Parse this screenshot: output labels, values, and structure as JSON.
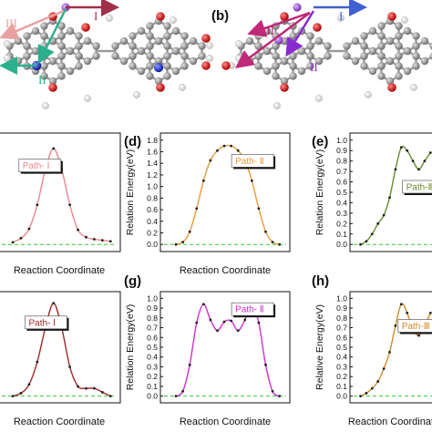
{
  "colors": {
    "carbon": "#8a8a8a",
    "oxygen": "#d01818",
    "nitrogen": "#1a2bd0",
    "hydrogen": "#f2f2f2",
    "atom_purple": "#9b59d0",
    "arrow_I": "#a0304a",
    "arrow_II_a": "#2ab08c",
    "arrow_III_a": "#e8a0a0",
    "arrow_I_b": "#4060d0",
    "arrow_II_b": "#8a2bd0",
    "arrow_III_b": "#c02878",
    "baseline": "#33cc33"
  },
  "panel_labels": {
    "b": "(b)",
    "d": "(d)",
    "e": "(e)",
    "g": "(g)",
    "h": "(h)"
  },
  "molecule_a": {
    "label_I": "I",
    "label_II": "II",
    "label_III": "III"
  },
  "molecule_b": {
    "label_I": "I",
    "label_II": "II",
    "label_III": "III"
  },
  "chart_data": [
    {
      "id": "c",
      "type": "line",
      "xlabel": "Reaction Coordinate",
      "ylabel": "",
      "ylim": [
        0,
        1.0
      ],
      "annotation": "Path- Ⅰ",
      "series": [
        {
          "color": "#e8888c",
          "values": [
            0.02,
            0.06,
            0.15,
            0.38,
            0.72,
            0.92,
            0.72,
            0.38,
            0.14,
            0.07,
            0.05,
            0.04,
            0.03
          ]
        }
      ]
    },
    {
      "id": "d",
      "type": "line",
      "xlabel": "Reaction Coordinate",
      "ylabel": "Relation Energy(eV)",
      "ylim": [
        0,
        1.8
      ],
      "yticks": [
        "0.0",
        "0.2",
        "0.4",
        "0.6",
        "0.8",
        "1.0",
        "1.2",
        "1.4",
        "1.6",
        "1.8"
      ],
      "annotation": "Path- Ⅱ",
      "series": [
        {
          "color": "#e89a3c",
          "values": [
            0.0,
            0.04,
            0.22,
            0.62,
            1.1,
            1.45,
            1.62,
            1.7,
            1.7,
            1.62,
            1.45,
            1.1,
            0.62,
            0.22,
            0.04,
            0.0
          ]
        }
      ]
    },
    {
      "id": "e",
      "type": "line",
      "xlabel": "",
      "ylabel": "Relation Energy(eV)",
      "ylim": [
        0,
        1.0
      ],
      "yticks": [
        "0.0",
        "0.1",
        "0.2",
        "0.3",
        "0.4",
        "0.5",
        "0.6",
        "0.7",
        "0.8",
        "0.9",
        "1.0"
      ],
      "annotation": "Path-Ⅲ",
      "series": [
        {
          "color": "#6a8a2a",
          "values": [
            0.0,
            0.03,
            0.1,
            0.2,
            0.28,
            0.45,
            0.72,
            0.93,
            0.9,
            0.8,
            0.72,
            0.8,
            0.88
          ]
        }
      ]
    },
    {
      "id": "f",
      "type": "line",
      "xlabel": "Reaction Coordinate",
      "ylabel": "",
      "ylim": [
        0,
        1.0
      ],
      "annotation": "Path- Ⅰ",
      "series": [
        {
          "color": "#a02a2a",
          "values": [
            0.0,
            0.03,
            0.12,
            0.35,
            0.7,
            0.95,
            0.7,
            0.3,
            0.1,
            0.08,
            0.08,
            0.04,
            0.0
          ]
        }
      ]
    },
    {
      "id": "g",
      "type": "line",
      "xlabel": "Reaction Coordinate",
      "ylabel": "Relation Energy(eV)",
      "ylim": [
        0,
        1.0
      ],
      "yticks": [
        "0.0",
        "0.1",
        "0.2",
        "0.3",
        "0.4",
        "0.5",
        "0.6",
        "0.7",
        "0.8",
        "0.9",
        "1.0"
      ],
      "annotation": "Path- Ⅱ",
      "series": [
        {
          "color": "#d030d0",
          "values": [
            0.0,
            0.05,
            0.32,
            0.75,
            0.94,
            0.78,
            0.67,
            0.76,
            0.77,
            0.67,
            0.78,
            0.94,
            0.75,
            0.32,
            0.05,
            0.0
          ]
        }
      ]
    },
    {
      "id": "h",
      "type": "line",
      "xlabel": "Reaction Coordinate",
      "ylabel": "Relative Energy(eV)",
      "ylim": [
        0,
        1.0
      ],
      "yticks": [
        "0.0",
        "0.1",
        "0.2",
        "0.3",
        "0.4",
        "0.5",
        "0.6",
        "0.7",
        "0.8",
        "0.9",
        "1.0"
      ],
      "annotation": "Path-Ⅲ",
      "series": [
        {
          "color": "#d08a2a",
          "values": [
            0.0,
            0.03,
            0.08,
            0.15,
            0.28,
            0.45,
            0.72,
            0.94,
            0.85,
            0.68,
            0.62,
            0.72,
            0.85
          ]
        }
      ]
    }
  ]
}
